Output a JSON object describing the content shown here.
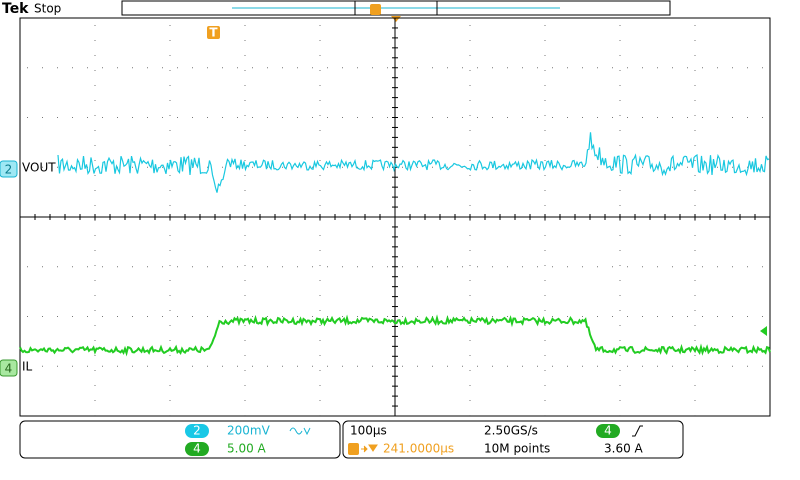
{
  "header": {
    "brand": "Tek",
    "status": "Stop",
    "trigger_marker": "T"
  },
  "channels": [
    {
      "number": "2",
      "label": "VOUT"
    },
    {
      "number": "4",
      "label": "IL"
    }
  ],
  "status_panel": {
    "ch2_number": "2",
    "ch2_scale": "200mV",
    "ch4_number": "4",
    "ch4_scale": "5.00 A",
    "timebase": "100µs",
    "sample_rate": "2.50GS/s",
    "trigger_position": "241.0000µs",
    "record_length": "10M points",
    "trigger_source": "4",
    "trigger_level": "3.60 A"
  }
}
